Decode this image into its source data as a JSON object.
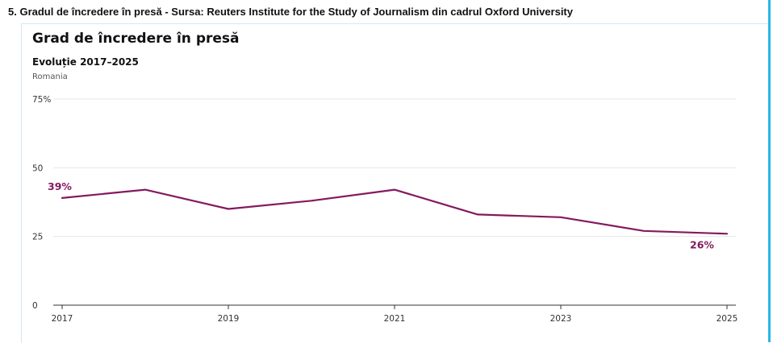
{
  "page": {
    "caption": "5. Gradul de încredere în presă - Sursa: Reuters Institute for the Study of Journalism din cadrul Oxford University"
  },
  "colors": {
    "line": "#84195f",
    "grid": "#e6e6e6",
    "axis": "#333333",
    "tick_text": "#333333",
    "accent_border": "#29b7e6"
  },
  "chart_data": {
    "type": "line",
    "title": "Grad de încredere în presă",
    "subtitle": "Evoluție 2017–2025",
    "note": "Romania",
    "x": [
      2017,
      2018,
      2019,
      2020,
      2021,
      2022,
      2023,
      2024,
      2025
    ],
    "series": [
      {
        "values": [
          39,
          42,
          35,
          38,
          42,
          33,
          32,
          27,
          26
        ]
      }
    ],
    "xticks": [
      2017,
      2019,
      2021,
      2023,
      2025
    ],
    "yticks": [
      0,
      25,
      50,
      75
    ],
    "ytick_labels": [
      "0",
      "25",
      "50",
      "75%"
    ],
    "xlim": [
      2017,
      2025
    ],
    "ylim": [
      0,
      75
    ],
    "grid": true,
    "annotations": [
      {
        "x": 2017,
        "y": 39,
        "text": "39%"
      },
      {
        "x": 2025,
        "y": 26,
        "text": "26%"
      }
    ]
  }
}
